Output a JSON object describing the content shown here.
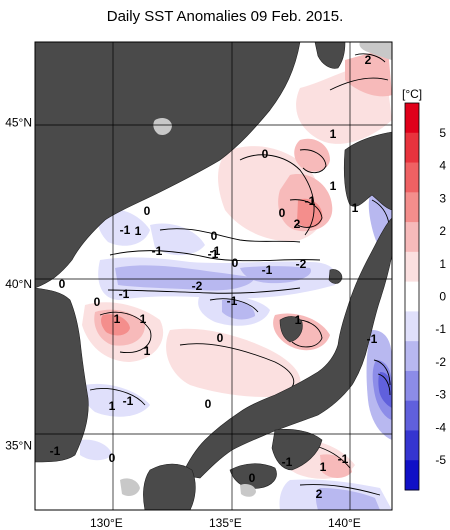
{
  "title": "Daily SST Anomalies 09 Feb. 2015.",
  "map": {
    "lon_range": [
      127,
      142
    ],
    "lat_range": [
      33,
      47.5
    ],
    "lon_ticks": [
      {
        "value": 130,
        "label": "130°E"
      },
      {
        "value": 135,
        "label": "135°E"
      },
      {
        "value": 140,
        "label": "140°E"
      }
    ],
    "lat_ticks": [
      {
        "value": 45,
        "label": "45°N"
      },
      {
        "value": 40,
        "label": "40°N"
      },
      {
        "value": 35,
        "label": "35°N"
      }
    ],
    "land_color": "#4a4a4a",
    "sea_ice_color": "#c8c8c8",
    "contour_labels": [
      "2",
      "1",
      "1",
      "0",
      "1",
      "2",
      "0",
      "0",
      "-1",
      "1",
      "-1",
      "-1",
      "-1",
      "0",
      "-1",
      "-2",
      "-1",
      "-2",
      "-1",
      "0",
      "0",
      "-1",
      "1",
      "1",
      "1",
      "-1",
      "1",
      "0",
      "-1",
      "1",
      "0",
      "0",
      "-1",
      "-1",
      "-1",
      "0",
      "1",
      "2",
      "0"
    ]
  },
  "colorbar": {
    "unit": "[°C]",
    "ticks": [
      "5",
      "4",
      "3",
      "2",
      "1",
      "0",
      "-1",
      "-2",
      "-3",
      "-4",
      "-5"
    ],
    "colors": [
      "#e0001a",
      "#e8333d",
      "#ef6163",
      "#f48e8c",
      "#f7baba",
      "#fbe0e0",
      "#ffffff",
      "#e0e0fb",
      "#b8b8f0",
      "#8c8ce8",
      "#6060dc",
      "#3535d0",
      "#1010c6"
    ]
  }
}
